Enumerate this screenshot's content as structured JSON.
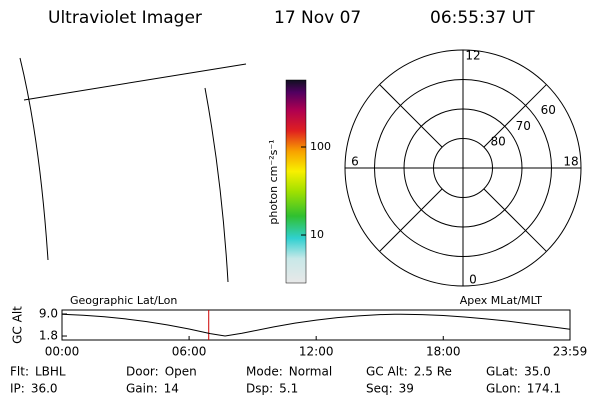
{
  "header": {
    "instrument": "Ultraviolet Imager",
    "date": "17 Nov 07",
    "time": "06:55:37 UT"
  },
  "colorbar": {
    "label": "photon cm⁻²s⁻¹",
    "scale": "log",
    "clim": [
      2.85,
      577
    ],
    "ticks": [
      10,
      100
    ]
  },
  "polar": {
    "rlim": [
      90,
      50
    ],
    "rticks": [
      80,
      70,
      60
    ],
    "mlt_ticks": [
      12,
      18,
      6,
      0
    ]
  },
  "chart_data": {
    "type": "line",
    "y_label": "GC Alt",
    "left_label": "Geographic Lat/Lon",
    "right_label": "Apex MLat/MLT",
    "x": [
      0,
      1,
      2,
      3,
      4,
      5,
      6,
      7,
      7.7,
      8.5,
      9,
      10,
      11,
      12,
      13,
      14,
      15,
      15.7,
      16,
      17,
      18,
      19,
      20,
      21,
      22,
      23,
      23.98
    ],
    "series": [
      {
        "name": "GC Alt",
        "color": "#000000",
        "values": [
          8.9,
          8.6,
          8.1,
          7.4,
          6.5,
          5.4,
          4.1,
          2.6,
          1.8,
          2.7,
          3.4,
          4.8,
          6.0,
          7.0,
          7.8,
          8.4,
          8.8,
          8.9,
          8.9,
          8.8,
          8.5,
          8.0,
          7.4,
          6.7,
          5.8,
          4.9,
          4.0
        ]
      }
    ],
    "xlim": [
      0,
      23.983
    ],
    "xticks": [
      {
        "value": 0,
        "label": "00:00"
      },
      {
        "value": 6,
        "label": "06:00"
      },
      {
        "value": 12,
        "label": "12:00"
      },
      {
        "value": 18,
        "label": "18:00"
      },
      {
        "value": 23.983,
        "label": "23:59"
      }
    ],
    "ylim": [
      0.5,
      10.3
    ],
    "yticks": [
      {
        "value": 9,
        "label": "9.0"
      },
      {
        "value": 1.8,
        "label": "1.8"
      }
    ],
    "marker_x": 6.927,
    "marker_color": "#cc0000"
  },
  "info": [
    {
      "label": "Flt:",
      "value": "LBHL"
    },
    {
      "label": "IP:",
      "value": "36.0"
    },
    {
      "label": "Door:",
      "value": "Open"
    },
    {
      "label": "Gain:",
      "value": "14"
    },
    {
      "label": "Mode:",
      "value": "Normal"
    },
    {
      "label": "Dsp:",
      "value": "5.1"
    },
    {
      "label": "GC Alt:",
      "value": "2.5 Re"
    },
    {
      "label": "Seq:",
      "value": "39"
    },
    {
      "label": "GLat:",
      "value": "35.0"
    },
    {
      "label": "GLon:",
      "value": "174.1"
    }
  ]
}
